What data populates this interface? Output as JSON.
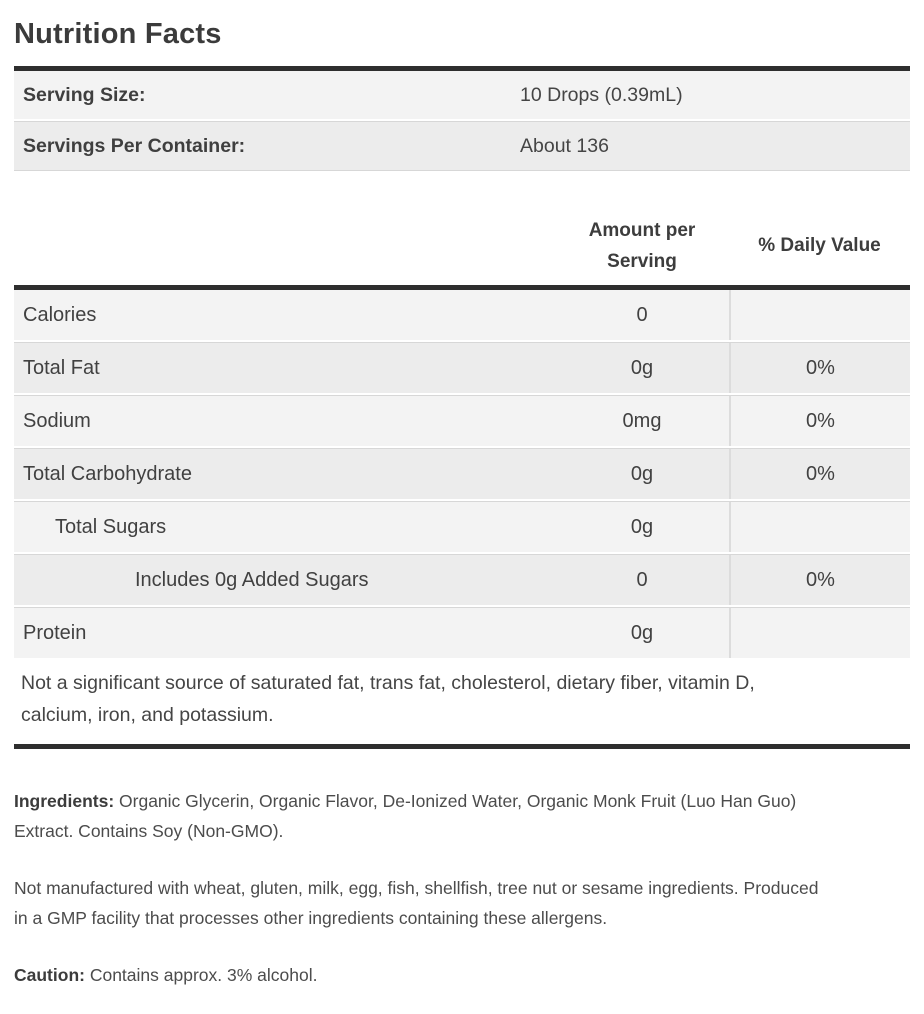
{
  "title": "Nutrition Facts",
  "serving_info": {
    "rows": [
      {
        "label": "Serving Size:",
        "value": "10 Drops (0.39mL)"
      },
      {
        "label": "Servings Per Container:",
        "value": "About 136"
      }
    ]
  },
  "nutrition_table": {
    "headers": {
      "amount": "Amount per\nServing",
      "daily_value": "% Daily Value"
    },
    "rows": [
      {
        "label": "Calories",
        "amount": "0",
        "daily_value": ""
      },
      {
        "label": "Total Fat",
        "amount": "0g",
        "daily_value": "0%"
      },
      {
        "label": "Sodium",
        "amount": "0mg",
        "daily_value": "0%"
      },
      {
        "label": "Total Carbohydrate",
        "amount": "0g",
        "daily_value": "0%"
      },
      {
        "label": "Total Sugars",
        "amount": "0g",
        "daily_value": ""
      },
      {
        "label": "Includes 0g Added Sugars",
        "amount": "0",
        "daily_value": "0%"
      },
      {
        "label": "Protein",
        "amount": "0g",
        "daily_value": ""
      }
    ],
    "footnote": "Not a significant source of saturated fat, trans fat, cholesterol, dietary fiber, vitamin D,\ncalcium, iron, and potassium."
  },
  "paragraphs": {
    "ingredients_label": "Ingredients:",
    "ingredients_text": " Organic Glycerin, Organic Flavor, De-Ionized Water, Organic Monk Fruit (Luo Han Guo)\nExtract. Contains Soy (Non-GMO).",
    "allergen_text": "Not manufactured with wheat, gluten, milk, egg, fish, shellfish, tree nut or sesame ingredients. Produced\nin a GMP facility that processes other ingredients containing these allergens.",
    "caution_label": "Caution:",
    "caution_text": " Contains approx. 3% alcohol."
  },
  "colors": {
    "bar": "#2e2e2e",
    "stripe_light": "#f3f3f3",
    "stripe_dark": "#ececec",
    "separator": "#d7d7d7",
    "text": "#414141"
  }
}
